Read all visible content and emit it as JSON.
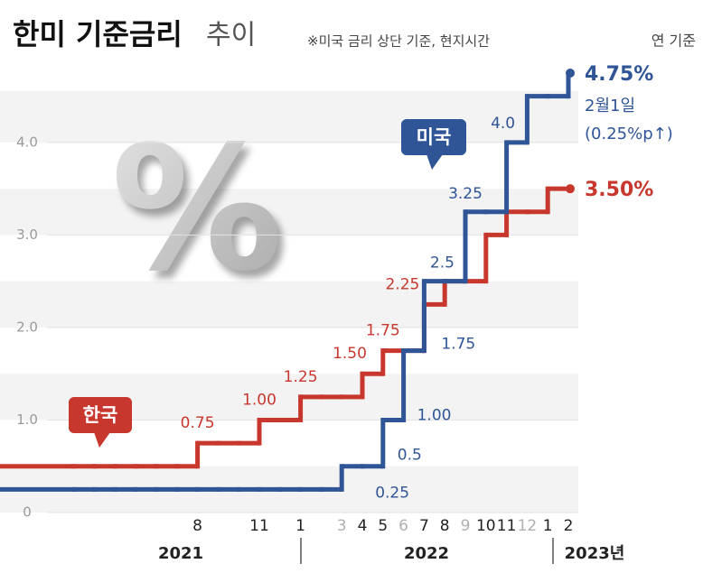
{
  "chart_data": {
    "type": "step",
    "title": "한미 기준금리",
    "title_suffix": "추이",
    "subtitle": "※미국 금리 상단 기준, 현지시간",
    "unit_note": "연 기준",
    "watermark": "%",
    "categories": [
      null,
      null,
      null,
      null,
      null,
      null,
      null,
      "8",
      null,
      null,
      "11",
      null,
      "1",
      null,
      "3",
      "4",
      "5",
      "6",
      "7",
      "8",
      "9",
      "10",
      "11",
      "12",
      "1",
      "2"
    ],
    "x_groups": [
      "2021",
      "2022",
      "2023년"
    ],
    "series": [
      {
        "name": "한국",
        "color": "#c8372d",
        "values": [
          0.5,
          0.5,
          0.5,
          0.5,
          0.5,
          0.5,
          0.5,
          0.75,
          0.75,
          0.75,
          1.0,
          1.0,
          1.25,
          1.25,
          1.25,
          1.5,
          1.75,
          1.75,
          2.25,
          2.5,
          2.5,
          3.0,
          3.25,
          3.25,
          3.5,
          3.5
        ],
        "value_labels": [
          null,
          null,
          null,
          null,
          null,
          null,
          null,
          "0.75",
          null,
          null,
          "1.00",
          null,
          "1.25",
          null,
          null,
          "1.50",
          "1.75",
          null,
          "2.25",
          null,
          null,
          null,
          null,
          null,
          null,
          "3.50%"
        ]
      },
      {
        "name": "미국",
        "color": "#2f5597",
        "values": [
          0.25,
          0.25,
          0.25,
          0.25,
          0.25,
          0.25,
          0.25,
          0.25,
          0.25,
          0.25,
          0.25,
          0.25,
          0.25,
          0.25,
          0.5,
          0.5,
          1.0,
          1.75,
          2.5,
          2.5,
          3.25,
          3.25,
          4.0,
          4.5,
          4.5,
          4.75
        ],
        "value_labels": [
          null,
          null,
          null,
          null,
          null,
          null,
          null,
          null,
          null,
          null,
          null,
          null,
          null,
          "0.25",
          null,
          "0.5",
          "1.00",
          "1.75",
          "2.5",
          null,
          "3.25",
          null,
          "4.0",
          null,
          null,
          "4.75%"
        ]
      }
    ],
    "annotations": [
      "2월1일",
      "(0.25%p↑)"
    ],
    "ylim": [
      0,
      4.75
    ],
    "yticks": [
      0,
      {
        "value": 1,
        "label": "1.0"
      },
      {
        "value": 2,
        "label": "2.0"
      },
      {
        "value": 3,
        "label": "3.0"
      },
      {
        "value": 4,
        "label": "4.0"
      }
    ],
    "grid": true
  }
}
